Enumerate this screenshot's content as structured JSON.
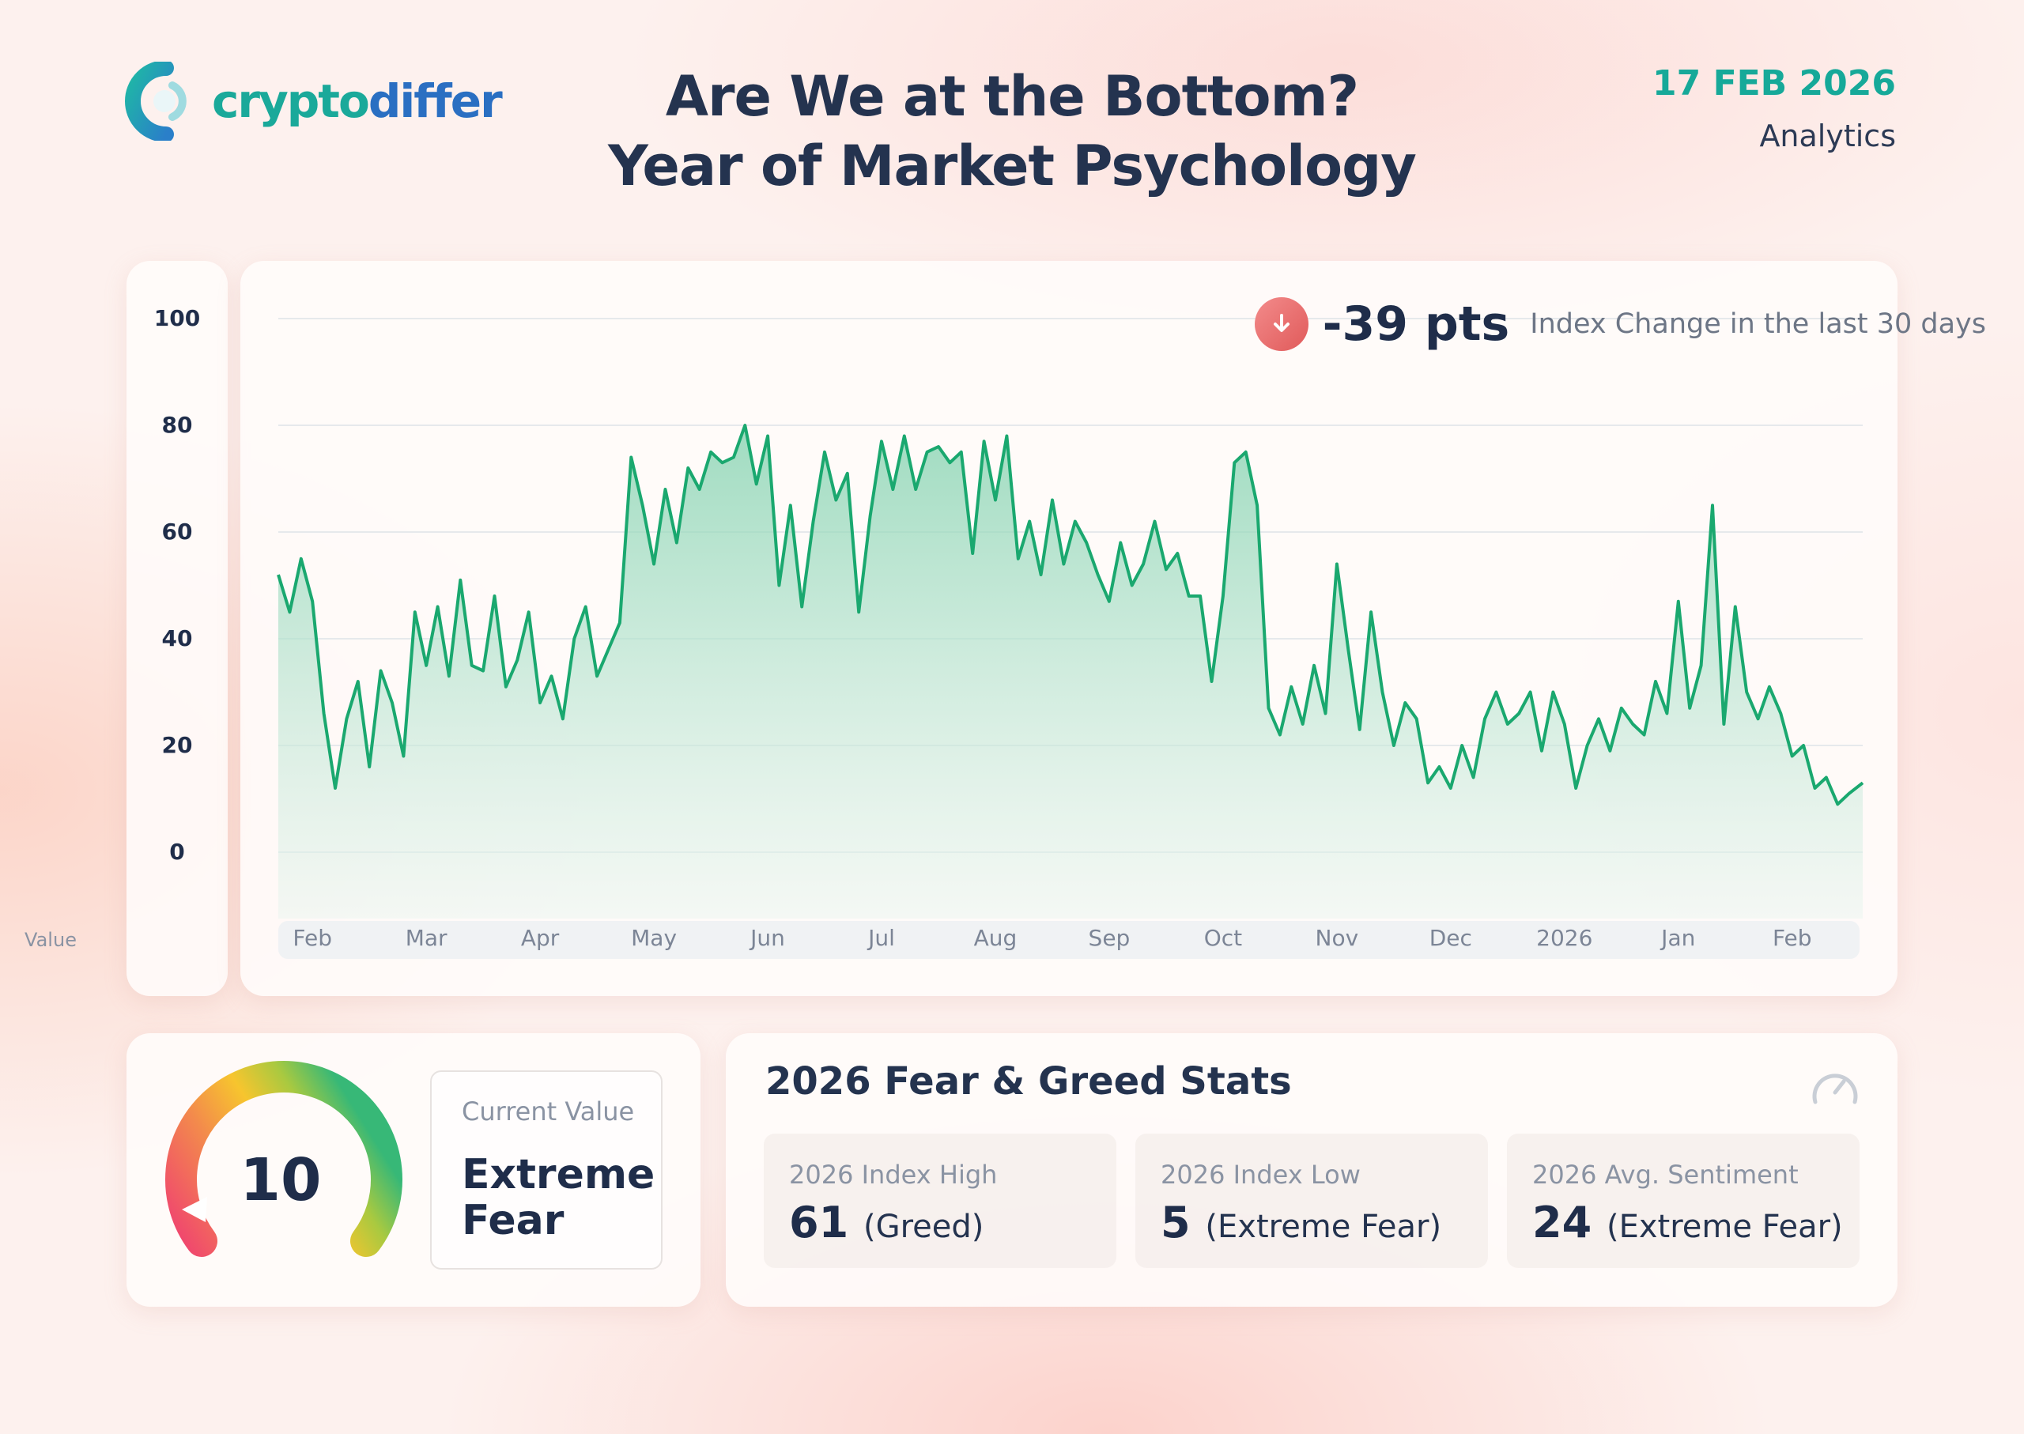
{
  "brand": {
    "name_part1": "crypto",
    "name_part2": "differ"
  },
  "title": {
    "line1": "Are We at the Bottom?",
    "line2": "Year of Market Psychology"
  },
  "date": "17 FEB 2026",
  "section": "Analytics",
  "index_change": {
    "value": "-39 pts",
    "label": "Index Change in the last 30 days"
  },
  "current": {
    "value": "10",
    "label": "Current Value",
    "status_line1": "Extreme",
    "status_line2": "Fear"
  },
  "stats": {
    "title": "2026 Fear & Greed Stats",
    "items": [
      {
        "label": "2026 Index High",
        "value": "61",
        "desc": "(Greed)"
      },
      {
        "label": "2026 Index Low",
        "value": "5",
        "desc": "(Extreme Fear)"
      },
      {
        "label": "2026 Avg. Sentiment",
        "value": "24",
        "desc": "(Extreme Fear)"
      }
    ]
  },
  "colors": {
    "accent": "#16a999",
    "line": "#1aa86f",
    "area": "#9ddcc0",
    "negative": "#e05a5a"
  },
  "chart_data": {
    "type": "area",
    "ylabel": "Value",
    "ylim": [
      0,
      100
    ],
    "yticks": [
      0,
      20,
      40,
      60,
      80,
      100
    ],
    "grid": true,
    "x_ticks": [
      "Feb",
      "Mar",
      "Apr",
      "May",
      "Jun",
      "Jul",
      "Aug",
      "Sep",
      "Oct",
      "Nov",
      "Dec",
      "2026",
      "Jan",
      "Feb"
    ],
    "x_tick_positions": [
      0.5,
      1.5,
      2.5,
      3.5,
      4.5,
      5.5,
      6.5,
      7.5,
      8.5,
      9.5,
      10.5,
      11.5,
      12.5,
      13.5
    ],
    "x_range": [
      0.2,
      14.12
    ],
    "series": [
      {
        "name": "",
        "x": [
          0.2,
          0.3,
          0.4,
          0.5,
          0.6,
          0.7,
          0.8,
          0.9,
          1.0,
          1.1,
          1.2,
          1.3,
          1.4,
          1.5,
          1.6,
          1.7,
          1.8,
          1.9,
          2.0,
          2.1,
          2.2,
          2.3,
          2.4,
          2.5,
          2.6,
          2.7,
          2.8,
          2.9,
          3.0,
          3.1,
          3.2,
          3.3,
          3.4,
          3.5,
          3.6,
          3.7,
          3.8,
          3.9,
          4.0,
          4.1,
          4.2,
          4.3,
          4.4,
          4.5,
          4.6,
          4.7,
          4.8,
          4.9,
          5.0,
          5.1,
          5.2,
          5.3,
          5.4,
          5.5,
          5.6,
          5.7,
          5.8,
          5.9,
          6.0,
          6.1,
          6.2,
          6.3,
          6.4,
          6.5,
          6.6,
          6.7,
          6.8,
          6.9,
          7.0,
          7.1,
          7.2,
          7.3,
          7.4,
          7.5,
          7.6,
          7.7,
          7.8,
          7.9,
          8.0,
          8.1,
          8.2,
          8.3,
          8.4,
          8.5,
          8.6,
          8.7,
          8.8,
          8.9,
          9.0,
          9.1,
          9.2,
          9.3,
          9.4,
          9.5,
          9.6,
          9.7,
          9.8,
          9.9,
          10.0,
          10.1,
          10.2,
          10.3,
          10.4,
          10.5,
          10.6,
          10.7,
          10.8,
          10.9,
          11.0,
          11.1,
          11.2,
          11.3,
          11.4,
          11.5,
          11.6,
          11.7,
          11.8,
          11.9,
          12.0,
          12.1,
          12.2,
          12.3,
          12.4,
          12.5,
          12.6,
          12.7,
          12.8,
          12.9,
          13.0,
          13.1,
          13.2,
          13.3,
          13.4,
          13.5,
          13.6,
          13.7,
          13.8,
          13.9,
          14.0,
          14.12
        ],
        "values": [
          52,
          45,
          55,
          47,
          26,
          12,
          25,
          32,
          16,
          34,
          28,
          18,
          45,
          35,
          46,
          33,
          51,
          35,
          34,
          48,
          31,
          36,
          45,
          28,
          33,
          25,
          40,
          46,
          33,
          38,
          43,
          74,
          65,
          54,
          68,
          58,
          72,
          68,
          75,
          73,
          74,
          80,
          69,
          78,
          50,
          65,
          46,
          62,
          75,
          66,
          71,
          45,
          63,
          77,
          68,
          78,
          68,
          75,
          76,
          73,
          75,
          56,
          77,
          66,
          78,
          55,
          62,
          52,
          66,
          54,
          62,
          58,
          52,
          47,
          58,
          50,
          54,
          62,
          53,
          56,
          48,
          48,
          32,
          48,
          73,
          75,
          65,
          27,
          22,
          31,
          24,
          35,
          26,
          54,
          38,
          23,
          45,
          30,
          20,
          28,
          25,
          13,
          16,
          12,
          20,
          14,
          25,
          30,
          24,
          26,
          30,
          19,
          30,
          24,
          12,
          20,
          25,
          19,
          27,
          24,
          22,
          32,
          26,
          47,
          27,
          35,
          65,
          24,
          46,
          30,
          25,
          31,
          26,
          18,
          20,
          12,
          14,
          9,
          11,
          13
        ],
        "color": "#1aa86f"
      }
    ]
  }
}
